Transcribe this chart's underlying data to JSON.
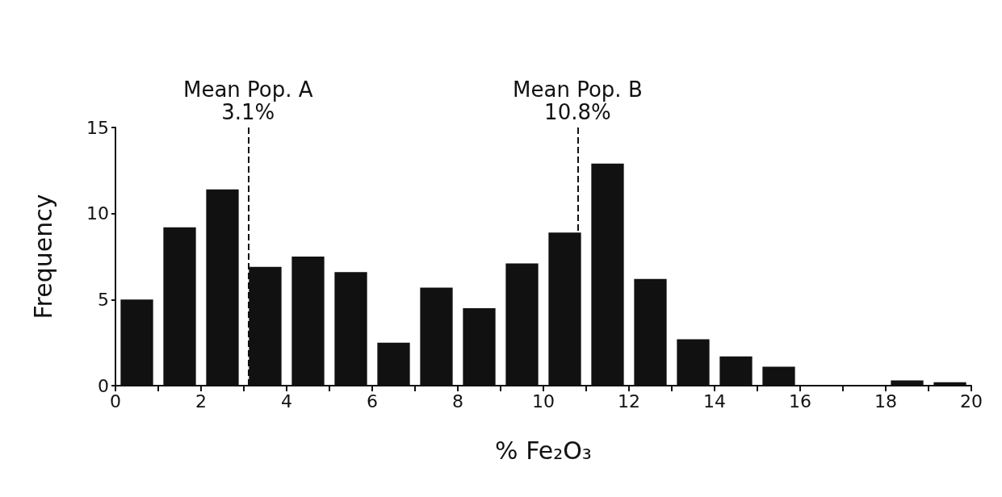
{
  "chart_data": {
    "type": "histogram",
    "xlabel": "% Fe₂O₃",
    "ylabel": "Frequency",
    "color": "#111111",
    "bins": [
      0,
      1,
      2,
      3,
      4,
      5,
      6,
      7,
      8,
      9,
      10,
      11,
      12,
      13,
      14,
      15,
      16,
      17,
      18,
      19,
      20
    ],
    "values": [
      5.0,
      9.2,
      11.4,
      6.9,
      7.5,
      6.6,
      2.5,
      5.7,
      4.5,
      7.1,
      8.9,
      12.9,
      6.2,
      2.7,
      1.7,
      1.1,
      0,
      0,
      0.3,
      0.2
    ],
    "xlim": [
      0,
      20
    ],
    "ylim": [
      0,
      15
    ],
    "xticks": [
      0,
      {
        "value": 1,
        "label": null
      },
      2,
      {
        "value": 3,
        "label": null
      },
      4,
      {
        "value": 5,
        "label": null
      },
      6,
      {
        "value": 7,
        "label": null
      },
      8,
      {
        "value": 9,
        "label": null
      },
      10,
      {
        "value": 11,
        "label": null
      },
      12,
      {
        "value": 13,
        "label": null
      },
      14,
      {
        "value": 15,
        "label": null
      },
      16,
      {
        "value": 17,
        "label": null
      },
      18,
      {
        "value": 19,
        "label": null
      },
      20
    ],
    "yticks": [
      0,
      5,
      10,
      15
    ],
    "ref_lines": [
      {
        "axis": "x",
        "value": 3.1,
        "label": "Mean Pop. A\n3.1%",
        "color": "#111111",
        "line_style": "dashed"
      },
      {
        "axis": "x",
        "value": 10.8,
        "label": "Mean Pop. B\n10.8%",
        "color": "#111111",
        "line_style": "dashed"
      }
    ],
    "grid": false
  }
}
